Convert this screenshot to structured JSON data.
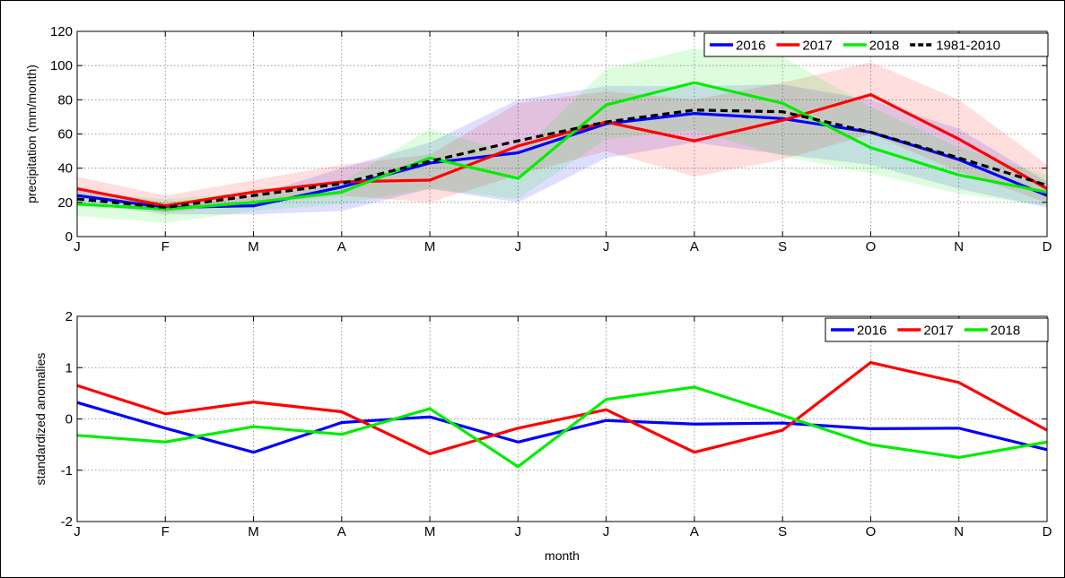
{
  "chart_data": [
    {
      "type": "line",
      "ylabel": "precipitation (mm/month)",
      "xlabel": "",
      "categories": [
        "J",
        "F",
        "M",
        "A",
        "M",
        "J",
        "J",
        "A",
        "S",
        "O",
        "N",
        "D"
      ],
      "ylim": [
        0,
        120
      ],
      "yticks": [
        "0",
        "20",
        "40",
        "60",
        "80",
        "100",
        "120"
      ],
      "grid": true,
      "legend_position": "top-right",
      "series": [
        {
          "name": "2016",
          "color": "#0000ff",
          "style": "solid",
          "values": [
            24,
            17,
            18,
            29,
            43,
            49,
            66,
            72,
            69,
            61,
            45,
            24
          ]
        },
        {
          "name": "2017",
          "color": "#ff0000",
          "style": "solid",
          "values": [
            28,
            18,
            26,
            32,
            33,
            53,
            67,
            56,
            68,
            83,
            57,
            28
          ]
        },
        {
          "name": "2018",
          "color": "#00ee00",
          "style": "solid",
          "values": [
            19,
            16,
            20,
            26,
            46,
            34,
            77,
            90,
            78,
            52,
            36,
            26
          ]
        },
        {
          "name": "1981-2010",
          "color": "#000000",
          "style": "dashed",
          "values": [
            22,
            17,
            24,
            31,
            44,
            56,
            67,
            74,
            73,
            61,
            46,
            30
          ]
        }
      ],
      "bands": [
        {
          "series": "2016",
          "color": "#0000ff",
          "lower": [
            20,
            13,
            13,
            15,
            28,
            20,
            46,
            55,
            48,
            42,
            28,
            17
          ],
          "upper": [
            28,
            20,
            24,
            40,
            55,
            80,
            88,
            88,
            89,
            80,
            63,
            32
          ]
        },
        {
          "series": "2017",
          "color": "#ff0000",
          "lower": [
            24,
            14,
            19,
            24,
            20,
            36,
            50,
            35,
            45,
            60,
            38,
            20
          ],
          "upper": [
            35,
            24,
            33,
            42,
            48,
            78,
            85,
            80,
            90,
            102,
            80,
            42
          ]
        },
        {
          "series": "2018",
          "color": "#00ee00",
          "lower": [
            12,
            8,
            15,
            19,
            28,
            22,
            57,
            62,
            47,
            37,
            25,
            18
          ],
          "upper": [
            26,
            22,
            26,
            32,
            63,
            48,
            98,
            110,
            105,
            76,
            52,
            36
          ]
        }
      ]
    },
    {
      "type": "line",
      "ylabel": "standardized anomalies",
      "xlabel": "month",
      "categories": [
        "J",
        "F",
        "M",
        "A",
        "M",
        "J",
        "J",
        "A",
        "S",
        "O",
        "N",
        "D"
      ],
      "ylim": [
        -2,
        2
      ],
      "yticks": [
        "-2",
        "-1",
        "0",
        "1",
        "2"
      ],
      "grid": true,
      "legend_position": "top-right",
      "series": [
        {
          "name": "2016",
          "color": "#0000ff",
          "style": "solid",
          "values": [
            0.32,
            -0.18,
            -0.65,
            -0.07,
            0.04,
            -0.45,
            -0.03,
            -0.1,
            -0.08,
            -0.19,
            -0.18,
            -0.6
          ]
        },
        {
          "name": "2017",
          "color": "#ff0000",
          "style": "solid",
          "values": [
            0.65,
            0.1,
            0.33,
            0.14,
            -0.68,
            -0.18,
            0.18,
            -0.65,
            -0.22,
            1.1,
            0.71,
            -0.22
          ]
        },
        {
          "name": "2018",
          "color": "#00ee00",
          "style": "solid",
          "values": [
            -0.32,
            -0.45,
            -0.15,
            -0.3,
            0.2,
            -0.93,
            0.38,
            0.62,
            0.07,
            -0.5,
            -0.75,
            -0.45
          ]
        }
      ]
    }
  ]
}
